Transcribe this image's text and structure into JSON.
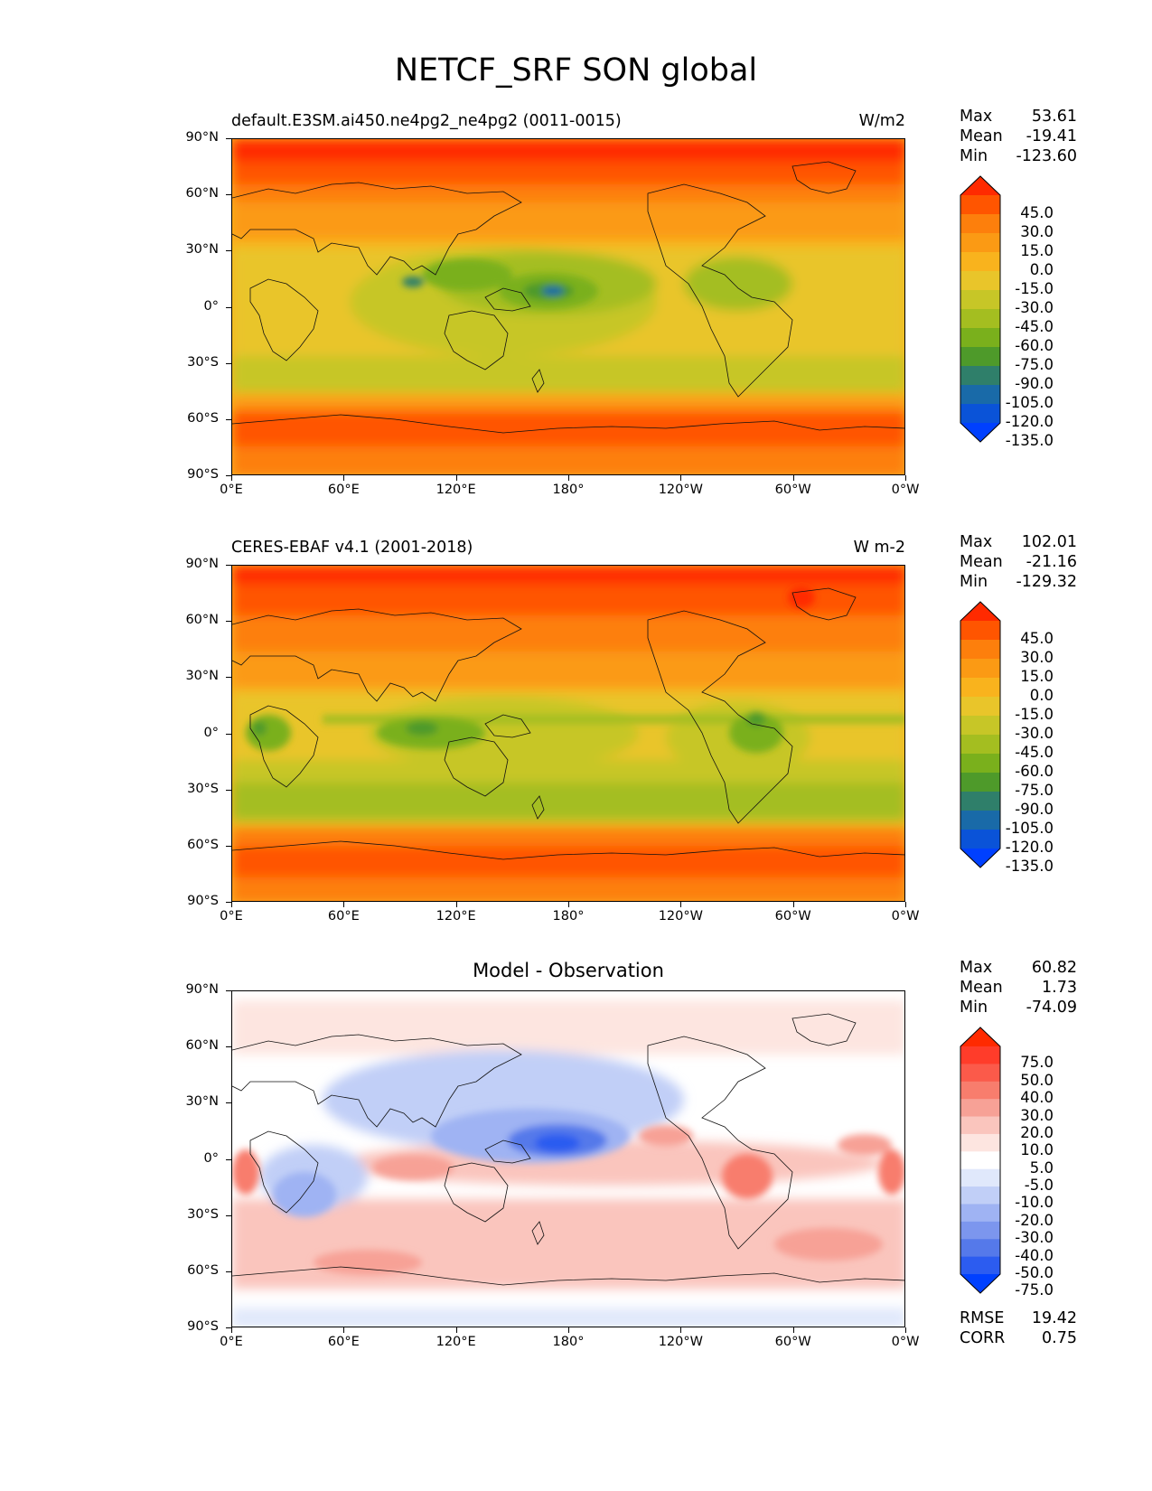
{
  "figure": {
    "title": "NETCF_SRF SON global"
  },
  "axes": {
    "y_ticks": [
      "90°N",
      "60°N",
      "30°N",
      "0°",
      "30°S",
      "60°S",
      "90°S"
    ],
    "x_ticks": [
      "0°E",
      "60°E",
      "120°E",
      "180°",
      "120°W",
      "60°W",
      "0°W"
    ]
  },
  "panels": [
    {
      "title_left": "default.E3SM.ai450.ne4pg2_ne4pg2 (0011-0015)",
      "title_right": "W/m2",
      "stats": [
        {
          "label": "Max",
          "value": "53.61"
        },
        {
          "label": "Mean",
          "value": "-19.41"
        },
        {
          "label": "Min",
          "value": "-123.60"
        }
      ],
      "colorbar": {
        "labels": [
          "45.0",
          "30.0",
          "15.0",
          "0.0",
          "-15.0",
          "-30.0",
          "-45.0",
          "-60.0",
          "-75.0",
          "-90.0",
          "-105.0",
          "-120.0",
          "-135.0"
        ],
        "colors": [
          "#ff2a00",
          "#ff5500",
          "#fd7f0c",
          "#fb9a14",
          "#f9b31d",
          "#e9c52a",
          "#c7c627",
          "#a4be20",
          "#7ab01c",
          "#4e9a2a",
          "#2f7f6a",
          "#196aa8",
          "#0a53d8",
          "#0040ff"
        ]
      }
    },
    {
      "title_left": "CERES-EBAF v4.1 (2001-2018)",
      "title_right": "W m-2",
      "stats": [
        {
          "label": "Max",
          "value": "102.01"
        },
        {
          "label": "Mean",
          "value": "-21.16"
        },
        {
          "label": "Min",
          "value": "-129.32"
        }
      ],
      "colorbar": {
        "labels": [
          "45.0",
          "30.0",
          "15.0",
          "0.0",
          "-15.0",
          "-30.0",
          "-45.0",
          "-60.0",
          "-75.0",
          "-90.0",
          "-105.0",
          "-120.0",
          "-135.0"
        ],
        "colors": [
          "#ff2a00",
          "#ff5500",
          "#fd7f0c",
          "#fb9a14",
          "#f9b31d",
          "#e9c52a",
          "#c7c627",
          "#a4be20",
          "#7ab01c",
          "#4e9a2a",
          "#2f7f6a",
          "#196aa8",
          "#0a53d8",
          "#0040ff"
        ]
      }
    },
    {
      "title_center": "Model - Observation",
      "stats": [
        {
          "label": "Max",
          "value": "60.82"
        },
        {
          "label": "Mean",
          "value": "1.73"
        },
        {
          "label": "Min",
          "value": "-74.09"
        }
      ],
      "extra_stats": [
        {
          "label": "RMSE",
          "value": "19.42"
        },
        {
          "label": "CORR",
          "value": "0.75"
        }
      ],
      "colorbar": {
        "labels": [
          "75.0",
          "50.0",
          "40.0",
          "30.0",
          "20.0",
          "10.0",
          "5.0",
          "-5.0",
          "-10.0",
          "-20.0",
          "-30.0",
          "-40.0",
          "-50.0",
          "-75.0"
        ],
        "colors": [
          "#ff2a00",
          "#ff3c2a",
          "#fb5a4a",
          "#f87d6d",
          "#f7a196",
          "#fac5bd",
          "#fde5e0",
          "#ffffff",
          "#e0e8fb",
          "#c1cff7",
          "#9fb3f3",
          "#7c96ee",
          "#5579ea",
          "#2c5cf0",
          "#0040ff"
        ]
      }
    }
  ]
}
